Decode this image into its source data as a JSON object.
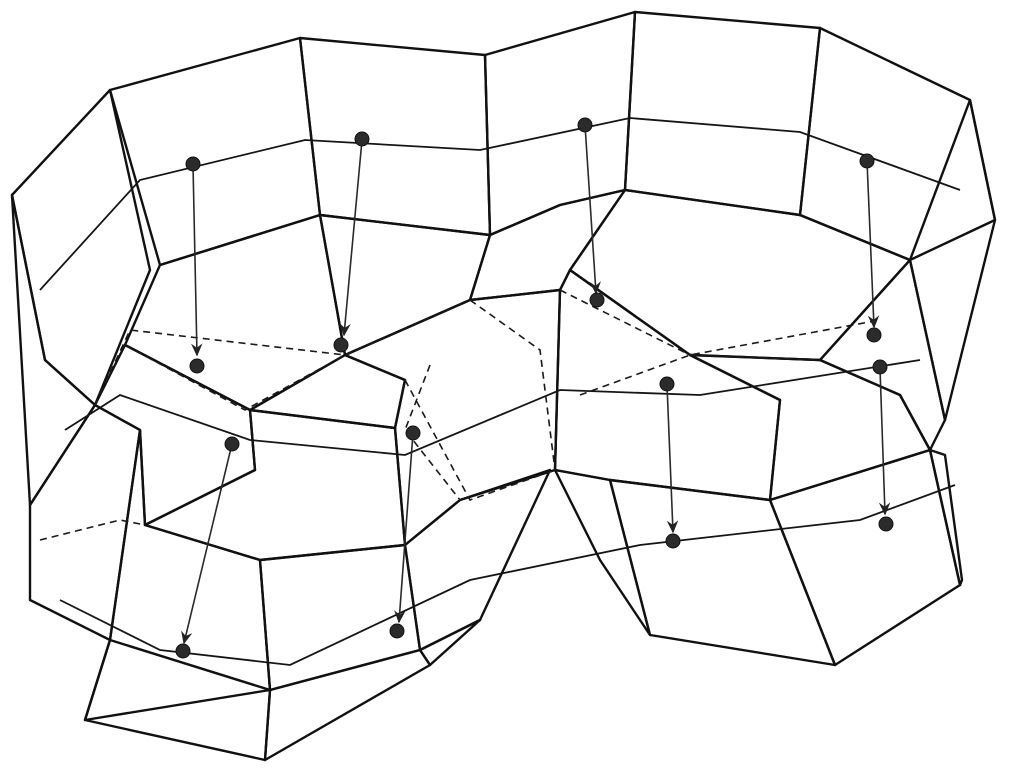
{
  "figure": {
    "colors": {
      "background": "#ffffff",
      "edge": "#111111",
      "lightest_face": "#f4f4f4",
      "light_face": "#d9d9d9",
      "mid_face": "#a8a8a8",
      "dark_face": "#5c5c5c",
      "node": "#2b2b2b"
    },
    "components": {
      "upper_prisms": 4,
      "lower_prisms": 4,
      "vertex_nodes": 16,
      "downward_arrows": 8
    }
  }
}
